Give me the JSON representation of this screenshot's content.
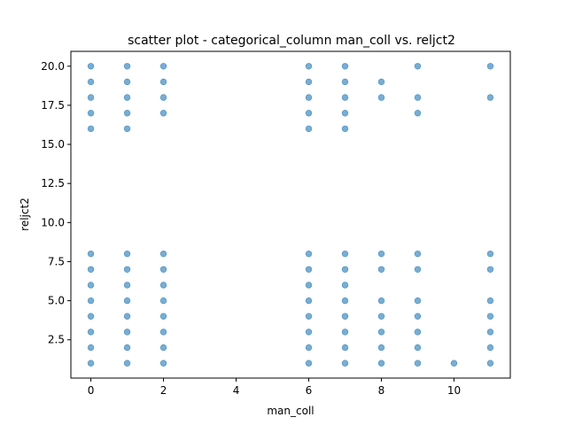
{
  "chart_data": {
    "type": "scatter",
    "title": "scatter plot - categorical_column man_coll vs. reljct2",
    "xlabel": "man_coll",
    "ylabel": "reljct2",
    "xlim": [
      -0.55,
      11.55
    ],
    "ylim": [
      0.05,
      20.95
    ],
    "xticks": [
      0,
      2,
      4,
      6,
      8,
      10
    ],
    "xtick_labels": [
      "0",
      "2",
      "4",
      "6",
      "8",
      "10"
    ],
    "yticks": [
      2.5,
      5.0,
      7.5,
      10.0,
      12.5,
      15.0,
      17.5,
      20.0
    ],
    "ytick_labels": [
      "2.5",
      "5.0",
      "7.5",
      "10.0",
      "12.5",
      "15.0",
      "17.5",
      "20.0"
    ],
    "grid": false,
    "marker_color": "#1f77b4",
    "series": [
      {
        "points": [
          {
            "x": 0,
            "y": 1
          },
          {
            "x": 0,
            "y": 2
          },
          {
            "x": 0,
            "y": 3
          },
          {
            "x": 0,
            "y": 4
          },
          {
            "x": 0,
            "y": 5
          },
          {
            "x": 0,
            "y": 6
          },
          {
            "x": 0,
            "y": 7
          },
          {
            "x": 0,
            "y": 8
          },
          {
            "x": 0,
            "y": 16
          },
          {
            "x": 0,
            "y": 17
          },
          {
            "x": 0,
            "y": 18
          },
          {
            "x": 0,
            "y": 19
          },
          {
            "x": 0,
            "y": 20
          },
          {
            "x": 1,
            "y": 1
          },
          {
            "x": 1,
            "y": 2
          },
          {
            "x": 1,
            "y": 3
          },
          {
            "x": 1,
            "y": 4
          },
          {
            "x": 1,
            "y": 5
          },
          {
            "x": 1,
            "y": 6
          },
          {
            "x": 1,
            "y": 7
          },
          {
            "x": 1,
            "y": 8
          },
          {
            "x": 1,
            "y": 16
          },
          {
            "x": 1,
            "y": 17
          },
          {
            "x": 1,
            "y": 18
          },
          {
            "x": 1,
            "y": 19
          },
          {
            "x": 1,
            "y": 20
          },
          {
            "x": 2,
            "y": 1
          },
          {
            "x": 2,
            "y": 2
          },
          {
            "x": 2,
            "y": 3
          },
          {
            "x": 2,
            "y": 4
          },
          {
            "x": 2,
            "y": 5
          },
          {
            "x": 2,
            "y": 6
          },
          {
            "x": 2,
            "y": 7
          },
          {
            "x": 2,
            "y": 8
          },
          {
            "x": 2,
            "y": 17
          },
          {
            "x": 2,
            "y": 18
          },
          {
            "x": 2,
            "y": 19
          },
          {
            "x": 2,
            "y": 20
          },
          {
            "x": 6,
            "y": 1
          },
          {
            "x": 6,
            "y": 2
          },
          {
            "x": 6,
            "y": 3
          },
          {
            "x": 6,
            "y": 4
          },
          {
            "x": 6,
            "y": 5
          },
          {
            "x": 6,
            "y": 6
          },
          {
            "x": 6,
            "y": 7
          },
          {
            "x": 6,
            "y": 8
          },
          {
            "x": 6,
            "y": 16
          },
          {
            "x": 6,
            "y": 17
          },
          {
            "x": 6,
            "y": 18
          },
          {
            "x": 6,
            "y": 19
          },
          {
            "x": 6,
            "y": 20
          },
          {
            "x": 7,
            "y": 1
          },
          {
            "x": 7,
            "y": 2
          },
          {
            "x": 7,
            "y": 3
          },
          {
            "x": 7,
            "y": 4
          },
          {
            "x": 7,
            "y": 5
          },
          {
            "x": 7,
            "y": 6
          },
          {
            "x": 7,
            "y": 7
          },
          {
            "x": 7,
            "y": 8
          },
          {
            "x": 7,
            "y": 16
          },
          {
            "x": 7,
            "y": 17
          },
          {
            "x": 7,
            "y": 18
          },
          {
            "x": 7,
            "y": 19
          },
          {
            "x": 7,
            "y": 20
          },
          {
            "x": 8,
            "y": 1
          },
          {
            "x": 8,
            "y": 2
          },
          {
            "x": 8,
            "y": 3
          },
          {
            "x": 8,
            "y": 4
          },
          {
            "x": 8,
            "y": 5
          },
          {
            "x": 8,
            "y": 7
          },
          {
            "x": 8,
            "y": 8
          },
          {
            "x": 8,
            "y": 18
          },
          {
            "x": 8,
            "y": 19
          },
          {
            "x": 9,
            "y": 1
          },
          {
            "x": 9,
            "y": 2
          },
          {
            "x": 9,
            "y": 3
          },
          {
            "x": 9,
            "y": 4
          },
          {
            "x": 9,
            "y": 5
          },
          {
            "x": 9,
            "y": 7
          },
          {
            "x": 9,
            "y": 8
          },
          {
            "x": 9,
            "y": 17
          },
          {
            "x": 9,
            "y": 18
          },
          {
            "x": 9,
            "y": 20
          },
          {
            "x": 10,
            "y": 1
          },
          {
            "x": 11,
            "y": 1
          },
          {
            "x": 11,
            "y": 2
          },
          {
            "x": 11,
            "y": 3
          },
          {
            "x": 11,
            "y": 4
          },
          {
            "x": 11,
            "y": 5
          },
          {
            "x": 11,
            "y": 7
          },
          {
            "x": 11,
            "y": 8
          },
          {
            "x": 11,
            "y": 18
          },
          {
            "x": 11,
            "y": 20
          }
        ]
      }
    ]
  }
}
